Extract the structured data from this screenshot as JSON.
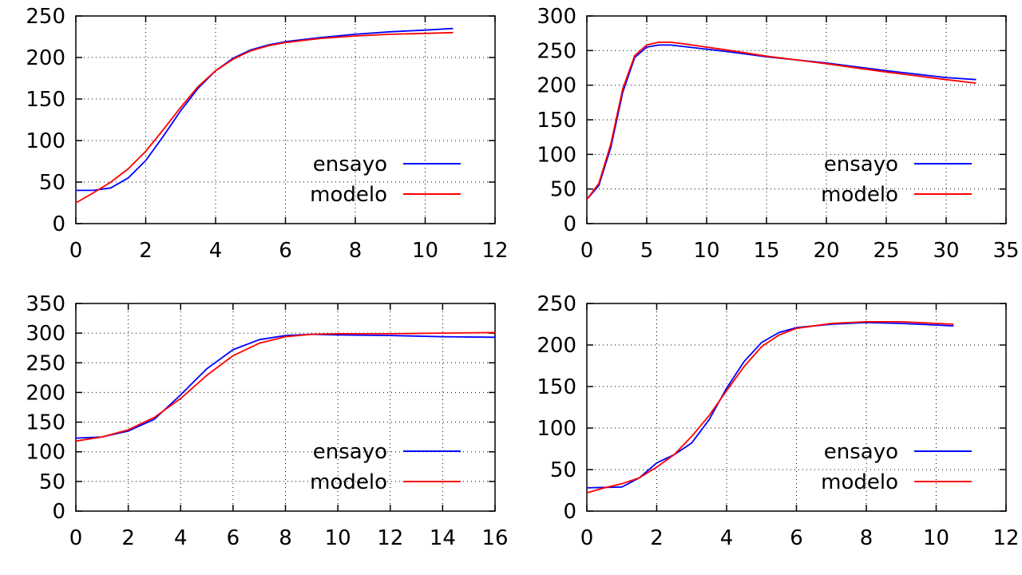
{
  "chart_data": [
    {
      "type": "line",
      "title": "",
      "xlabel": "",
      "ylabel": "",
      "xlim": [
        0,
        12
      ],
      "ylim": [
        0,
        250
      ],
      "xticks": [
        0,
        2,
        4,
        6,
        8,
        10,
        12
      ],
      "yticks": [
        0,
        50,
        100,
        150,
        200,
        250
      ],
      "grid": true,
      "legend_position": "bottom-right",
      "series": [
        {
          "name": "ensayo",
          "color": "#0000ff",
          "points": [
            [
              0,
              40
            ],
            [
              0.5,
              40
            ],
            [
              1,
              43
            ],
            [
              1.5,
              55
            ],
            [
              2,
              76
            ],
            [
              2.5,
              105
            ],
            [
              3,
              136
            ],
            [
              3.5,
              163
            ],
            [
              4,
              184
            ],
            [
              4.5,
              199
            ],
            [
              5,
              209
            ],
            [
              5.5,
              215
            ],
            [
              6,
              219
            ],
            [
              7,
              224
            ],
            [
              8,
              228
            ],
            [
              9,
              231
            ],
            [
              10,
              233
            ],
            [
              10.8,
              235
            ]
          ]
        },
        {
          "name": "modelo",
          "color": "#ff0000",
          "points": [
            [
              0,
              25
            ],
            [
              0.5,
              37
            ],
            [
              1,
              50
            ],
            [
              1.5,
              66
            ],
            [
              2,
              87
            ],
            [
              2.5,
              113
            ],
            [
              3,
              140
            ],
            [
              3.5,
              165
            ],
            [
              4,
              184
            ],
            [
              4.5,
              198
            ],
            [
              5,
              208
            ],
            [
              5.5,
              214
            ],
            [
              6,
              218
            ],
            [
              7,
              223
            ],
            [
              8,
              226
            ],
            [
              9,
              228
            ],
            [
              10,
              229
            ],
            [
              10.8,
              230
            ]
          ]
        }
      ]
    },
    {
      "type": "line",
      "title": "",
      "xlabel": "",
      "ylabel": "",
      "xlim": [
        0,
        35
      ],
      "ylim": [
        0,
        300
      ],
      "xticks": [
        0,
        5,
        10,
        15,
        20,
        25,
        30,
        35
      ],
      "yticks": [
        0,
        50,
        100,
        150,
        200,
        250,
        300
      ],
      "grid": true,
      "legend_position": "bottom-right",
      "series": [
        {
          "name": "ensayo",
          "color": "#0000ff",
          "points": [
            [
              0,
              35
            ],
            [
              1,
              55
            ],
            [
              2,
              110
            ],
            [
              3,
              190
            ],
            [
              4,
              240
            ],
            [
              5,
              255
            ],
            [
              6,
              258
            ],
            [
              7,
              258
            ],
            [
              8,
              256
            ],
            [
              10,
              252
            ],
            [
              12,
              248
            ],
            [
              15,
              241
            ],
            [
              20,
              232
            ],
            [
              25,
              221
            ],
            [
              30,
              211
            ],
            [
              32.5,
              208
            ]
          ]
        },
        {
          "name": "modelo",
          "color": "#ff0000",
          "points": [
            [
              0,
              35
            ],
            [
              1,
              58
            ],
            [
              2,
              115
            ],
            [
              3,
              195
            ],
            [
              4,
              243
            ],
            [
              5,
              258
            ],
            [
              6,
              262
            ],
            [
              7,
              262
            ],
            [
              8,
              260
            ],
            [
              10,
              255
            ],
            [
              12,
              250
            ],
            [
              15,
              242
            ],
            [
              20,
              231
            ],
            [
              25,
              219
            ],
            [
              30,
              208
            ],
            [
              32.5,
              203
            ]
          ]
        }
      ]
    },
    {
      "type": "line",
      "title": "",
      "xlabel": "",
      "ylabel": "",
      "xlim": [
        0,
        16
      ],
      "ylim": [
        0,
        350
      ],
      "xticks": [
        0,
        2,
        4,
        6,
        8,
        10,
        12,
        14,
        16
      ],
      "yticks": [
        0,
        50,
        100,
        150,
        200,
        250,
        300,
        350
      ],
      "grid": true,
      "legend_position": "bottom-right",
      "series": [
        {
          "name": "ensayo",
          "color": "#0000ff",
          "points": [
            [
              0,
              123
            ],
            [
              1,
              125
            ],
            [
              2,
              135
            ],
            [
              3,
              155
            ],
            [
              4,
              196
            ],
            [
              5,
              240
            ],
            [
              6,
              272
            ],
            [
              7,
              289
            ],
            [
              8,
              296
            ],
            [
              9,
              298
            ],
            [
              10,
              297
            ],
            [
              12,
              296
            ],
            [
              14,
              294
            ],
            [
              16,
              293
            ]
          ]
        },
        {
          "name": "modelo",
          "color": "#ff0000",
          "points": [
            [
              0,
              118
            ],
            [
              1,
              125
            ],
            [
              2,
              137
            ],
            [
              3,
              158
            ],
            [
              4,
              190
            ],
            [
              5,
              229
            ],
            [
              6,
              262
            ],
            [
              7,
              283
            ],
            [
              8,
              294
            ],
            [
              9,
              298
            ],
            [
              10,
              299
            ],
            [
              12,
              299
            ],
            [
              14,
              300
            ],
            [
              16,
              301
            ]
          ]
        }
      ]
    },
    {
      "type": "line",
      "title": "",
      "xlabel": "",
      "ylabel": "",
      "xlim": [
        0,
        12
      ],
      "ylim": [
        0,
        250
      ],
      "xticks": [
        0,
        2,
        4,
        6,
        8,
        10,
        12
      ],
      "yticks": [
        0,
        50,
        100,
        150,
        200,
        250
      ],
      "grid": true,
      "legend_position": "bottom-right",
      "series": [
        {
          "name": "ensayo",
          "color": "#0000ff",
          "points": [
            [
              0,
              28
            ],
            [
              1,
              29
            ],
            [
              1.5,
              40
            ],
            [
              2,
              58
            ],
            [
              2.5,
              68
            ],
            [
              3,
              82
            ],
            [
              3.5,
              110
            ],
            [
              4,
              148
            ],
            [
              4.5,
              180
            ],
            [
              5,
              203
            ],
            [
              5.5,
              215
            ],
            [
              6,
              221
            ],
            [
              7,
              225
            ],
            [
              8,
              227
            ],
            [
              9,
              226
            ],
            [
              10,
              224
            ],
            [
              10.5,
              223
            ]
          ]
        },
        {
          "name": "modelo",
          "color": "#ff0000",
          "points": [
            [
              0,
              22
            ],
            [
              0.5,
              28
            ],
            [
              1,
              33
            ],
            [
              1.5,
              40
            ],
            [
              2,
              53
            ],
            [
              2.5,
              68
            ],
            [
              3,
              90
            ],
            [
              3.5,
              115
            ],
            [
              4,
              145
            ],
            [
              4.5,
              174
            ],
            [
              5,
              198
            ],
            [
              5.5,
              212
            ],
            [
              6,
              220
            ],
            [
              7,
              226
            ],
            [
              8,
              228
            ],
            [
              9,
              228
            ],
            [
              10,
              226
            ],
            [
              10.5,
              225
            ]
          ]
        }
      ]
    }
  ]
}
